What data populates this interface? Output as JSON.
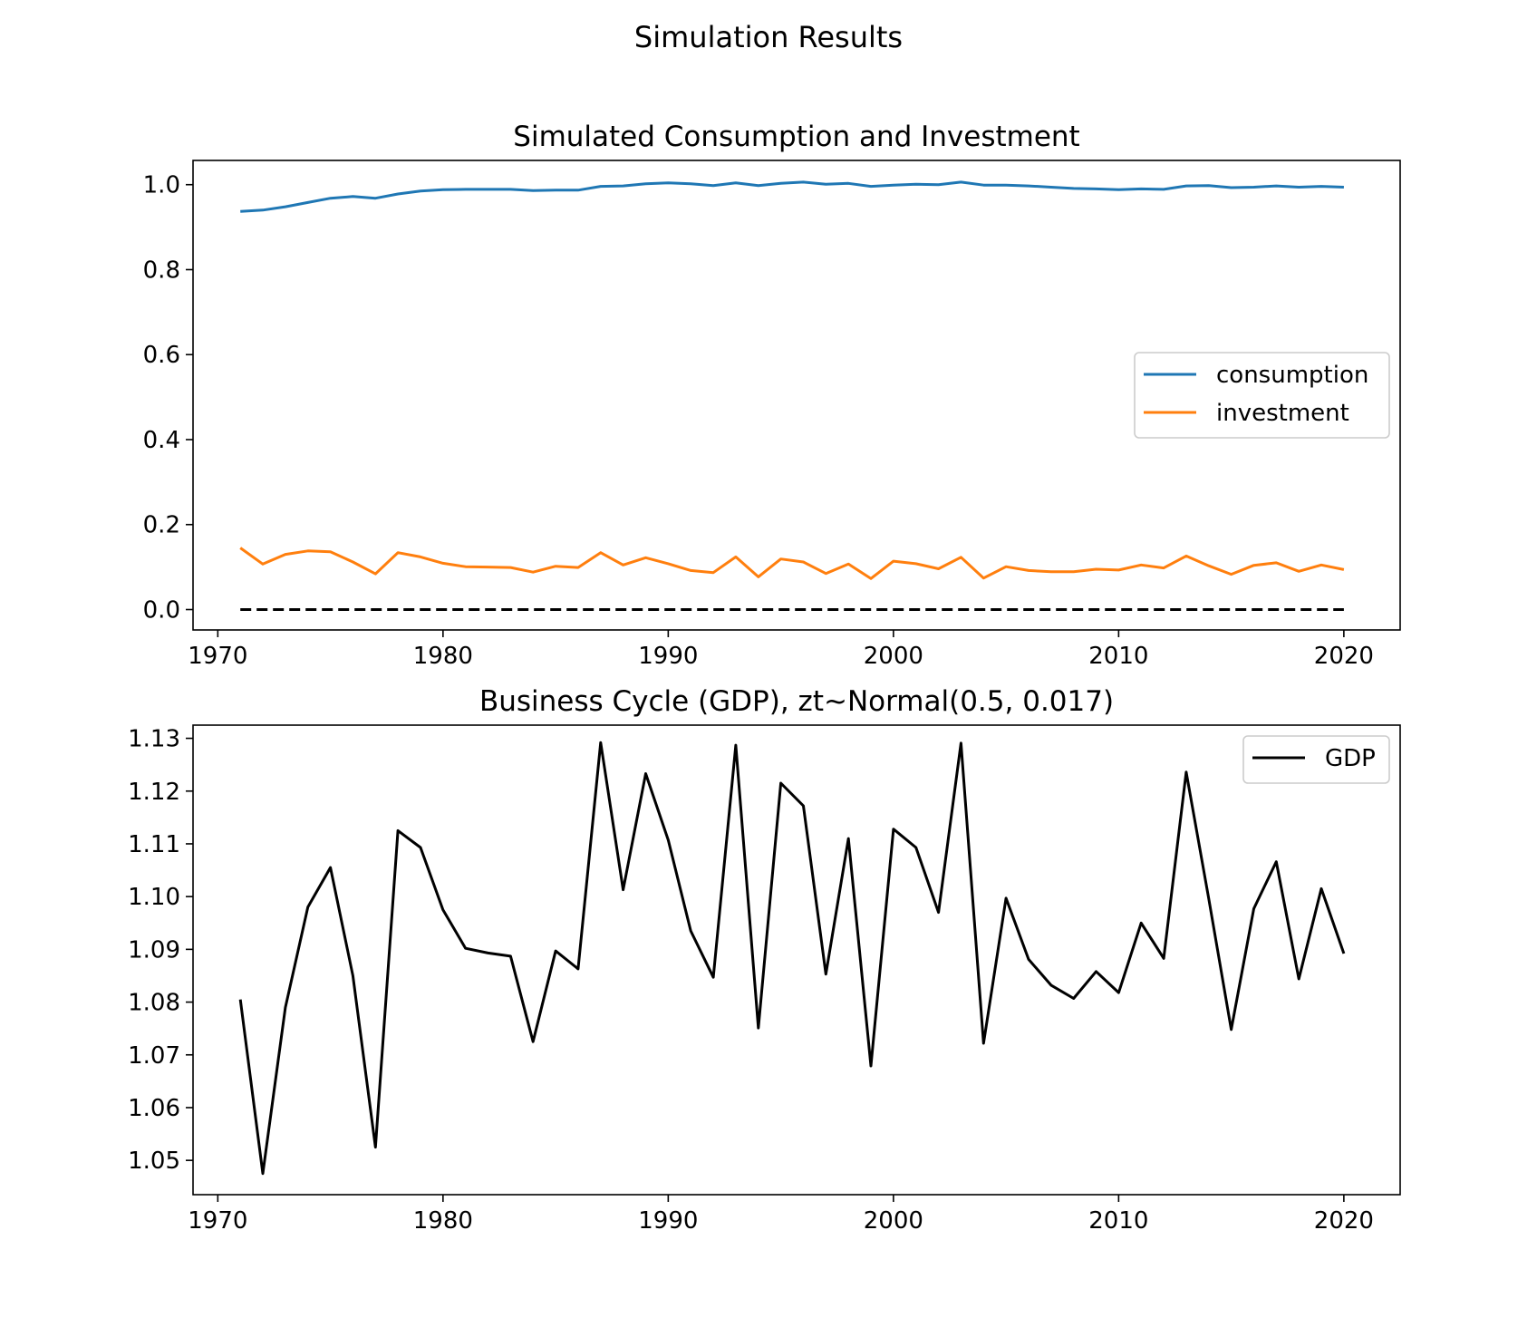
{
  "figure": {
    "title": "Simulation Results"
  },
  "chart_data": [
    {
      "type": "line",
      "title": "Simulated Consumption and Investment",
      "xlabel": "",
      "ylabel": "",
      "xlim": [
        1968.9,
        2022.5
      ],
      "ylim": [
        -0.048,
        1.057
      ],
      "xticks": [
        1970,
        1980,
        1990,
        2000,
        2010,
        2020
      ],
      "yticks": [
        "0.0",
        "0.2",
        "0.4",
        "0.6",
        "0.8",
        "1.0"
      ],
      "ytick_values": [
        0,
        0.2,
        0.4,
        0.6,
        0.8,
        1.0
      ],
      "legend": {
        "position": "center-right"
      },
      "x": [
        1971,
        1972,
        1973,
        1974,
        1975,
        1976,
        1977,
        1978,
        1979,
        1980,
        1981,
        1982,
        1983,
        1984,
        1985,
        1986,
        1987,
        1988,
        1989,
        1990,
        1991,
        1992,
        1993,
        1994,
        1995,
        1996,
        1997,
        1998,
        1999,
        2000,
        2001,
        2002,
        2003,
        2004,
        2005,
        2006,
        2007,
        2008,
        2009,
        2010,
        2011,
        2012,
        2013,
        2014,
        2015,
        2016,
        2017,
        2018,
        2019,
        2020
      ],
      "series": [
        {
          "name": "consumption",
          "color": "#1f77b4",
          "dashed": false,
          "values": [
            0.937,
            0.94,
            0.948,
            0.958,
            0.968,
            0.972,
            0.968,
            0.978,
            0.985,
            0.988,
            0.989,
            0.989,
            0.989,
            0.986,
            0.987,
            0.987,
            0.996,
            0.997,
            1.002,
            1.004,
            1.002,
            0.998,
            1.004,
            0.998,
            1.003,
            1.006,
            1.001,
            1.003,
            0.996,
            0.999,
            1.001,
            1.0,
            1.006,
            0.999,
            0.999,
            0.997,
            0.994,
            0.991,
            0.99,
            0.988,
            0.99,
            0.989,
            0.997,
            0.998,
            0.993,
            0.994,
            0.997,
            0.994,
            0.996,
            0.994
          ]
        },
        {
          "name": "investment",
          "color": "#ff7f0e",
          "dashed": false,
          "values": [
            0.145,
            0.107,
            0.13,
            0.138,
            0.136,
            0.112,
            0.084,
            0.134,
            0.124,
            0.109,
            0.101,
            0.1,
            0.099,
            0.088,
            0.102,
            0.099,
            0.134,
            0.105,
            0.122,
            0.108,
            0.092,
            0.087,
            0.124,
            0.077,
            0.119,
            0.112,
            0.085,
            0.107,
            0.073,
            0.114,
            0.108,
            0.096,
            0.123,
            0.074,
            0.101,
            0.092,
            0.089,
            0.089,
            0.095,
            0.093,
            0.105,
            0.098,
            0.126,
            0.103,
            0.083,
            0.104,
            0.11,
            0.09,
            0.105,
            0.094
          ]
        },
        {
          "name": "",
          "color": "#000000",
          "dashed": true,
          "values": [
            0,
            0,
            0,
            0,
            0,
            0,
            0,
            0,
            0,
            0,
            0,
            0,
            0,
            0,
            0,
            0,
            0,
            0,
            0,
            0,
            0,
            0,
            0,
            0,
            0,
            0,
            0,
            0,
            0,
            0,
            0,
            0,
            0,
            0,
            0,
            0,
            0,
            0,
            0,
            0,
            0,
            0,
            0,
            0,
            0,
            0,
            0,
            0,
            0,
            0
          ]
        }
      ]
    },
    {
      "type": "line",
      "title": "Business Cycle (GDP), zt~Normal(0.5, 0.017)",
      "xlabel": "",
      "ylabel": "",
      "xlim": [
        1968.9,
        2022.5
      ],
      "ylim": [
        1.0435,
        1.1325
      ],
      "xticks": [
        1970,
        1980,
        1990,
        2000,
        2010,
        2020
      ],
      "yticks": [
        "1.05",
        "1.06",
        "1.07",
        "1.08",
        "1.09",
        "1.10",
        "1.11",
        "1.12",
        "1.13"
      ],
      "ytick_values": [
        1.05,
        1.06,
        1.07,
        1.08,
        1.09,
        1.1,
        1.11,
        1.12,
        1.13
      ],
      "legend": {
        "position": "top-right"
      },
      "x": [
        1971,
        1972,
        1973,
        1974,
        1975,
        1976,
        1977,
        1978,
        1979,
        1980,
        1981,
        1982,
        1983,
        1984,
        1985,
        1986,
        1987,
        1988,
        1989,
        1990,
        1991,
        1992,
        1993,
        1994,
        1995,
        1996,
        1997,
        1998,
        1999,
        2000,
        2001,
        2002,
        2003,
        2004,
        2005,
        2006,
        2007,
        2008,
        2009,
        2010,
        2011,
        2012,
        2013,
        2014,
        2015,
        2016,
        2017,
        2018,
        2019,
        2020
      ],
      "series": [
        {
          "name": "GDP",
          "color": "#000000",
          "dashed": false,
          "values": [
            1.0805,
            1.0475,
            1.079,
            1.098,
            1.1055,
            1.085,
            1.0525,
            1.1125,
            1.1093,
            1.0975,
            1.0902,
            1.0893,
            1.0887,
            1.0725,
            1.0897,
            1.0863,
            1.1292,
            1.1013,
            1.1233,
            1.1107,
            1.0935,
            1.0847,
            1.1287,
            1.0751,
            1.1215,
            1.1172,
            1.0853,
            1.111,
            1.0679,
            1.1128,
            1.1093,
            1.097,
            1.1291,
            1.0722,
            1.0997,
            1.0881,
            1.0832,
            1.0807,
            1.0858,
            1.0818,
            1.095,
            1.0883,
            1.1236,
            1.0996,
            1.0748,
            1.0977,
            1.1066,
            1.0844,
            1.1015,
            1.0892
          ]
        }
      ]
    }
  ]
}
